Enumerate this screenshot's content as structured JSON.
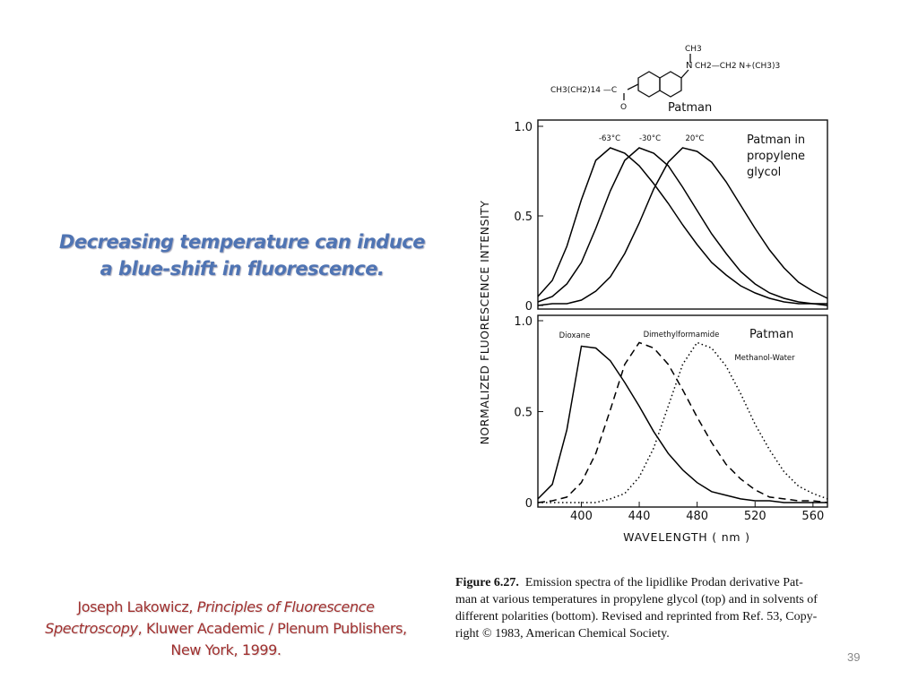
{
  "slide": {
    "headline": "Decreasing temperature can induce a blue-shift in fluorescence.",
    "citation": {
      "author": "Joseph Lakowicz, ",
      "book": "Principles of Fluorescence Spectroscopy",
      "publisher": ", Kluwer Academic / Plenum Publishers, New York, 1999."
    },
    "page_number": "39"
  },
  "structure": {
    "name": "Patman",
    "labels": [
      "CH3",
      "N",
      "CH2—CH2 N+(CH3)3",
      "CH3(CH2)14 —C",
      "O"
    ]
  },
  "figure": {
    "y_label": "NORMALIZED  FLUORESCENCE  INTENSITY",
    "x_label": "WAVELENGTH  ( nm )",
    "caption": {
      "label": "Figure 6.27.",
      "lines": [
        "Emission spectra of the lipidlike Prodan derivative Pat-",
        "man at various temperatures in propylene glycol (top) and in solvents of",
        "different polarities (bottom). Revised and reprinted from Ref. 53, Copy-",
        "right © 1983, American Chemical Society."
      ]
    }
  },
  "chart_data": [
    {
      "type": "line",
      "annotation": [
        "Patman  in",
        "propylene",
        "glycol"
      ],
      "x": [
        370,
        380,
        390,
        400,
        410,
        420,
        430,
        440,
        450,
        460,
        470,
        480,
        490,
        500,
        510,
        520,
        530,
        540,
        550,
        560,
        570
      ],
      "xlim": [
        370,
        570
      ],
      "ylim": [
        0,
        1
      ],
      "yticks": [
        0,
        0.5,
        {
          "value": 1,
          "label": "1.0"
        }
      ],
      "series": [
        {
          "name": "-63°C",
          "color": "#000000",
          "dash": "solid",
          "values": [
            0.05,
            0.14,
            0.33,
            0.59,
            0.81,
            0.88,
            0.85,
            0.78,
            0.68,
            0.57,
            0.45,
            0.34,
            0.24,
            0.17,
            0.11,
            0.07,
            0.04,
            0.02,
            0.01,
            0.01,
            0
          ]
        },
        {
          "name": "-30°C",
          "color": "#000000",
          "dash": "solid",
          "values": [
            0.02,
            0.05,
            0.12,
            0.24,
            0.43,
            0.64,
            0.81,
            0.88,
            0.85,
            0.78,
            0.66,
            0.53,
            0.4,
            0.29,
            0.19,
            0.12,
            0.07,
            0.04,
            0.02,
            0.01,
            0.01
          ]
        },
        {
          "name": "20°C",
          "color": "#000000",
          "dash": "solid",
          "values": [
            0,
            0.01,
            0.01,
            0.03,
            0.08,
            0.16,
            0.29,
            0.46,
            0.65,
            0.8,
            0.88,
            0.86,
            0.8,
            0.69,
            0.56,
            0.43,
            0.31,
            0.21,
            0.13,
            0.08,
            0.04
          ]
        }
      ]
    },
    {
      "type": "line",
      "annotation": [
        "Patman"
      ],
      "x": [
        370,
        380,
        390,
        400,
        410,
        420,
        430,
        440,
        450,
        460,
        470,
        480,
        490,
        500,
        510,
        520,
        530,
        540,
        550,
        560,
        570
      ],
      "xlim": [
        370,
        570
      ],
      "ylim": [
        0,
        1
      ],
      "yticks": [
        0,
        0.5,
        {
          "value": 1,
          "label": "1.0"
        }
      ],
      "xticks": [
        400,
        440,
        480,
        520,
        560
      ],
      "series": [
        {
          "name": "Dioxane",
          "color": "#000000",
          "dash": "solid",
          "values": [
            0.02,
            0.1,
            0.4,
            0.86,
            0.85,
            0.78,
            0.66,
            0.53,
            0.39,
            0.27,
            0.18,
            0.11,
            0.06,
            0.04,
            0.02,
            0.01,
            0.01,
            0,
            0,
            0,
            0
          ]
        },
        {
          "name": "Dimethylformamide",
          "color": "#000000",
          "dash": "dashed",
          "values": [
            0,
            0.01,
            0.03,
            0.11,
            0.27,
            0.51,
            0.76,
            0.88,
            0.85,
            0.76,
            0.62,
            0.47,
            0.33,
            0.21,
            0.13,
            0.07,
            0.03,
            0.02,
            0.01,
            0.01,
            0
          ]
        },
        {
          "name": "Methanol-Water",
          "color": "#000000",
          "dash": "dotted",
          "values": [
            0,
            0,
            0,
            0,
            0,
            0.02,
            0.05,
            0.14,
            0.3,
            0.53,
            0.76,
            0.88,
            0.85,
            0.75,
            0.6,
            0.43,
            0.29,
            0.17,
            0.09,
            0.05,
            0.02
          ]
        }
      ]
    }
  ]
}
